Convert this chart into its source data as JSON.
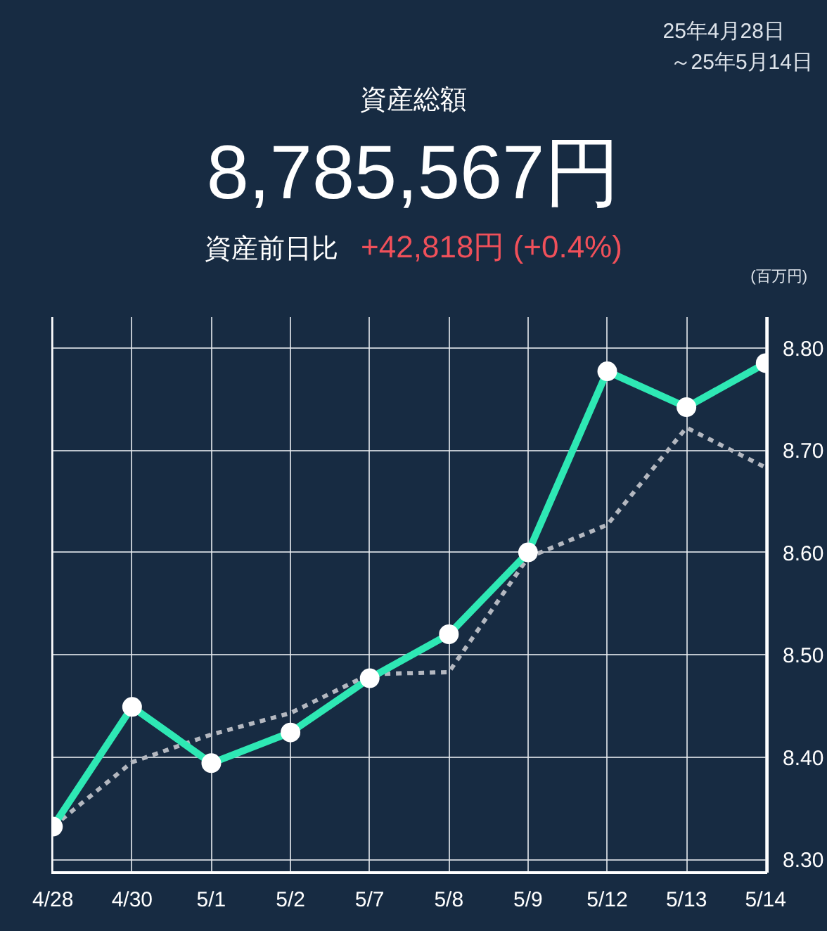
{
  "chart_data": {
    "type": "line",
    "title": "資産総額",
    "subtitle": "25年4月28日",
    "ylabel": "(百万円)",
    "annotations": [
      "8,785,567円",
      "資産前日比",
      "+42,818円 (+0.4%)",
      "～25年5月14日"
    ],
    "categories": [
      "4/28",
      "4/30",
      "5/1",
      "5/2",
      "5/7",
      "5/8",
      "5/9",
      "5/12",
      "5/13",
      "5/14"
    ],
    "series": [
      {
        "color": "#2ee8b4",
        "marker": "circle",
        "line_style": "solid",
        "values": [
          8.332,
          8.449,
          8.394,
          8.424,
          8.477,
          8.52,
          8.6,
          8.777,
          8.742,
          8.785
        ]
      },
      {
        "color": "#b4b8c0",
        "marker": "none",
        "line_style": "dashed",
        "values": [
          8.332,
          8.395,
          8.422,
          8.443,
          8.481,
          8.483,
          8.595,
          8.627,
          8.722,
          8.683
        ]
      }
    ],
    "ylim": [
      8.287,
      8.83
    ],
    "yticks": [
      {
        "value": 8.3,
        "label": "8.30"
      },
      {
        "value": 8.4,
        "label": "8.40"
      },
      {
        "value": 8.5,
        "label": "8.50"
      },
      {
        "value": 8.6,
        "label": "8.60"
      },
      {
        "value": 8.7,
        "label": "8.70"
      },
      {
        "value": 8.8,
        "label": "8.80"
      }
    ],
    "grid": true
  }
}
